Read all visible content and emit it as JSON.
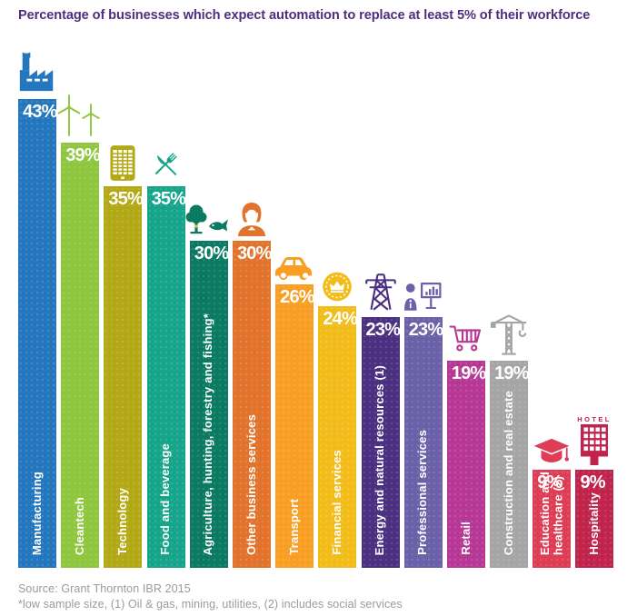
{
  "title": {
    "text": "Percentage of businesses which expect automation to replace at least 5% of their workforce",
    "color": "#4f2d7f"
  },
  "footer": {
    "source": "Source: Grant Thornton IBR 2015",
    "notes": "*low sample size, (1) Oil & gas, mining, utilities, (2) includes social services"
  },
  "chart_data": {
    "type": "bar",
    "title": "Percentage of businesses which expect automation to replace at least 5% of their workforce",
    "xlabel": "",
    "ylabel": "",
    "ylim": [
      0,
      45
    ],
    "grid": false,
    "legend": "none",
    "value_suffix": "%",
    "value_label_position": "inside-top",
    "category_label_position": "inside-bottom-vertical",
    "hotel_icon_text": "HOTEL",
    "categories": [
      "Manufacturing",
      "Cleantech",
      "Technology",
      "Food and beverage",
      "Agriculture, hunting, forestry and fishing*",
      "Other business services",
      "Transport",
      "Financial services",
      "Energy and natural resources (1)",
      "Professional services",
      "Retail",
      "Construction and real estate",
      "Education and\nhealthcare (2)",
      "Hospitality"
    ],
    "values": [
      43,
      39,
      35,
      35,
      30,
      30,
      26,
      24,
      23,
      23,
      19,
      19,
      9,
      9
    ],
    "colors": [
      "#2577bd",
      "#8ec63f",
      "#b3a816",
      "#16a58a",
      "#0b7a63",
      "#e2732c",
      "#f89e23",
      "#f2bc1b",
      "#4b2f80",
      "#6b61a8",
      "#b63894",
      "#a5a5a5",
      "#dd3d55",
      "#c0234c"
    ],
    "icons": [
      "factory-icon",
      "wind-turbines-icon",
      "mobile-phone-icon",
      "fork-knife-icon",
      "tree-fish-icon",
      "woman-icon",
      "car-icon",
      "coin-crown-icon",
      "pylon-icon",
      "person-presentation-icon",
      "shopping-cart-icon",
      "crane-icon",
      "graduation-cap-icon",
      "hotel-icon"
    ],
    "accent_yellow": "#f3c317"
  }
}
